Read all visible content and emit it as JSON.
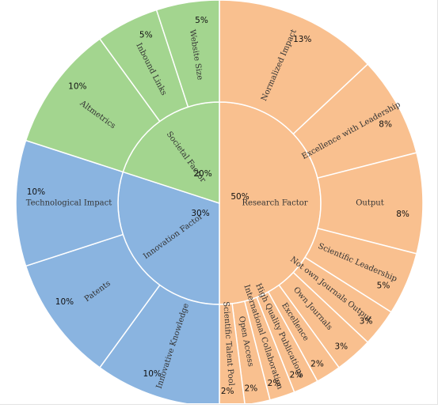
{
  "chart_data": {
    "type": "sunburst",
    "title": "",
    "colors": {
      "Research Factor": "#f9c08f",
      "Innovation Factor": "#8ab4e0",
      "Societal Factor": "#a3d58f",
      "stroke": "#ffffff"
    },
    "inner": [
      {
        "name": "Research Factor",
        "value": 50,
        "label": "50%"
      },
      {
        "name": "Innovation Factor",
        "value": 30,
        "label": "30%"
      },
      {
        "name": "Societal Factor",
        "value": 20,
        "label": "20%"
      }
    ],
    "outer": [
      {
        "name": "Normalized Impact",
        "parent": "Research Factor",
        "value": 13,
        "label": "13%"
      },
      {
        "name": "Excellence with Leadership",
        "parent": "Research Factor",
        "value": 8,
        "label": "8%"
      },
      {
        "name": "Output",
        "parent": "Research Factor",
        "value": 8,
        "label": "8%"
      },
      {
        "name": "Scientific Leadership",
        "parent": "Research Factor",
        "value": 5,
        "label": "5%"
      },
      {
        "name": "Not own Journals Output",
        "parent": "Research Factor",
        "value": 3,
        "label": "3%"
      },
      {
        "name": "Own Journals",
        "parent": "Research Factor",
        "value": 3,
        "label": "3%"
      },
      {
        "name": "Excellence",
        "parent": "Research Factor",
        "value": 2,
        "label": "2%"
      },
      {
        "name": "High Quality Publications",
        "parent": "Research Factor",
        "value": 2,
        "label": "2%"
      },
      {
        "name": "International Collaboration",
        "parent": "Research Factor",
        "value": 2,
        "label": "2%"
      },
      {
        "name": "Open Access",
        "parent": "Research Factor",
        "value": 2,
        "label": "2%"
      },
      {
        "name": "Scientific Talent Pool",
        "parent": "Research Factor",
        "value": 2,
        "label": "2%"
      },
      {
        "name": "Innovative Knowledge",
        "parent": "Innovation Factor",
        "value": 10,
        "label": "10%"
      },
      {
        "name": "Patents",
        "parent": "Innovation Factor",
        "value": 10,
        "label": "10%"
      },
      {
        "name": "Technological Impact",
        "parent": "Innovation Factor",
        "value": 10,
        "label": "10%"
      },
      {
        "name": "Altmetrics",
        "parent": "Societal Factor",
        "value": 10,
        "label": "10%"
      },
      {
        "name": "Inbound Links",
        "parent": "Societal Factor",
        "value": 5,
        "label": "5%"
      },
      {
        "name": "Website Size",
        "parent": "Societal Factor",
        "value": 5,
        "label": "5%"
      }
    ]
  }
}
